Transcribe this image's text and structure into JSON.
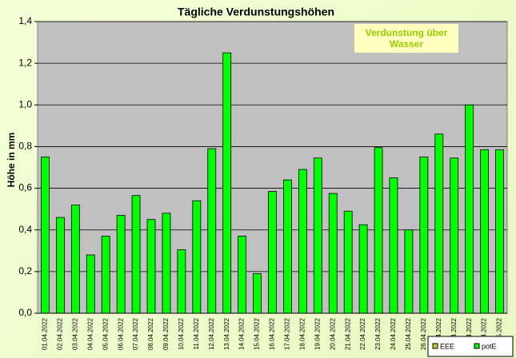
{
  "chart_data": {
    "type": "bar",
    "title": "Tägliche Verdunstungshöhen",
    "y_label": "Höhe in mm",
    "annotation": "Verdunstung über Wasser",
    "categories": [
      "01.04.2022",
      "02.04.2022",
      "03.04.2022",
      "04.04.2022",
      "05.04.2022",
      "06.04.2022",
      "07.04.2022",
      "08.04.2022",
      "09.04.2022",
      "10.04.2022",
      "11.04.2022",
      "12.04.2022",
      "13.04.2022",
      "14.04.2022",
      "15.04.2022",
      "16.04.2022",
      "17.04.2022",
      "18.04.2022",
      "19.04.2022",
      "20.04.2022",
      "21.04.2022",
      "22.04.2022",
      "23.04.2022",
      "24.04.2022",
      "25.04.2022",
      "26.04.2022",
      "27.04.2022",
      "28.04.2022",
      "29.04.2022",
      "30.04.2022",
      "01.05.2022"
    ],
    "series": [
      {
        "name": "EEE",
        "color": "#cccc33",
        "values": [
          null,
          null,
          null,
          null,
          null,
          null,
          null,
          null,
          null,
          null,
          null,
          null,
          null,
          null,
          null,
          null,
          null,
          null,
          null,
          null,
          null,
          null,
          null,
          null,
          null,
          null,
          null,
          null,
          null,
          null,
          null
        ]
      },
      {
        "name": "potE",
        "color": "#00ff00",
        "values": [
          0.75,
          0.46,
          0.52,
          0.28,
          0.37,
          0.47,
          0.565,
          0.45,
          0.48,
          0.305,
          0.54,
          0.79,
          1.25,
          0.37,
          0.19,
          0.585,
          0.64,
          0.69,
          0.745,
          0.575,
          0.49,
          0.425,
          0.795,
          0.65,
          0.4,
          0.75,
          0.86,
          0.745,
          1.0,
          0.785,
          0.785
        ]
      }
    ],
    "ylim": [
      0,
      1.4
    ],
    "yticks": [
      {
        "value": 0,
        "label": "0,0"
      },
      {
        "value": 0.2,
        "label": "0,2"
      },
      {
        "value": 0.4,
        "label": "0,4"
      },
      {
        "value": 0.6,
        "label": "0,6"
      },
      {
        "value": 0.8,
        "label": "0,8"
      },
      {
        "value": 1.0,
        "label": "1,0"
      },
      {
        "value": 1.2,
        "label": "1,2"
      },
      {
        "value": 1.4,
        "label": "1,4"
      }
    ],
    "grid": true,
    "legend": "bottom-right"
  }
}
